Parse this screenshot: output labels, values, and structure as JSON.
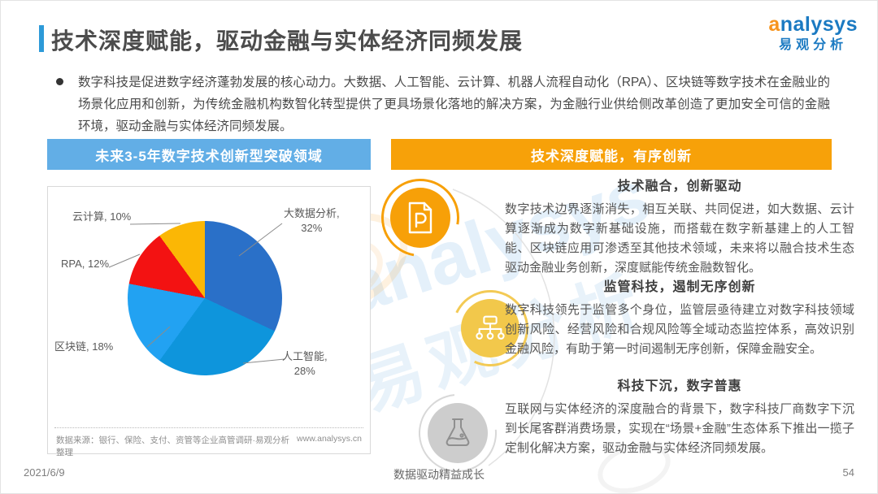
{
  "header": {
    "title": "技术深度赋能，驱动金融与实体经济同频发展",
    "logo": {
      "brand": "analysys",
      "brand_cn": "易观分析"
    }
  },
  "intro": {
    "bullet_text": "数字科技是促进数字经济蓬勃发展的核心动力。大数据、人工智能、云计算、机器人流程自动化（RPA）、区块链等数字技术在金融业的场景化应用和创新，为传统金融机构数智化转型提供了更具场景化落地的解决方案，为金融行业供给侧改革创造了更加安全可信的金融环境，驱动金融与实体经济同频发展。"
  },
  "left_panel": {
    "header": "未来3-5年数字技术创新型突破领域",
    "source": "数据来源：银行、保险、支付、资管等企业高管调研·易观分析整理",
    "website": "www.analysys.cn"
  },
  "right_panel": {
    "header": "技术深度赋能，有序创新",
    "sections": [
      {
        "icon": "document-p-icon",
        "title": "技术融合，创新驱动",
        "body": "数字技术边界逐渐消失，相互关联、共同促进，如大数据、云计算逐渐成为数字新基础设施，而搭载在数字新基建上的人工智能、区块链应用可渗透至其他技术领域，未来将以融合技术生态驱动金融业务创新，深度赋能传统金融数智化。"
      },
      {
        "icon": "org-chart-icon",
        "title": "监管科技，遏制无序创新",
        "body": "数字科技领先于监管多个身位，监管层亟待建立对数字科技领域创新风险、经营风险和合规风险等全域动态监控体系，高效识别金融风险，有助于第一时间遏制无序创新，保障金融安全。"
      },
      {
        "icon": "flask-icon",
        "title": "科技下沉，数字普惠",
        "body": "互联网与实体经济的深度融合的背景下，数字科技厂商数字下沉到长尾客群消费场景，实现在“场景+金融”生态体系下推出一揽子定制化解决方案，驱动金融与实体经济同频发展。"
      }
    ]
  },
  "chart_data": {
    "type": "pie",
    "title": "未来3-5年数字技术创新型突破领域",
    "labels": [
      "大数据分析",
      "人工智能",
      "区块链",
      "RPA",
      "云计算"
    ],
    "values": [
      32,
      28,
      18,
      12,
      10
    ],
    "unit": "%",
    "colors": [
      "#2A70C8",
      "#0E95DC",
      "#22A2F2",
      "#F31212",
      "#FBB705"
    ],
    "start_angle_deg": 0,
    "direction": "clockwise",
    "legend": "none",
    "source": "数据来源：银行、保险、支付、资管等企业高管调研·易观分析整理"
  },
  "watermark": {
    "brand": "analysys",
    "brand_cn": "易观分析"
  },
  "footer": {
    "date": "2021/6/9",
    "slogan": "数据驱动精益成长",
    "page": "54"
  },
  "colors": {
    "accent_blue": "#2D9AD8",
    "bar_blue": "#62AEE6",
    "bar_orange": "#F7A109",
    "icon_orange": "#F7A008",
    "icon_yellow": "#F2C84B",
    "icon_gray": "#CDCDCD",
    "logo_blue": "#1B7AC2",
    "logo_orange": "#F7941E"
  }
}
